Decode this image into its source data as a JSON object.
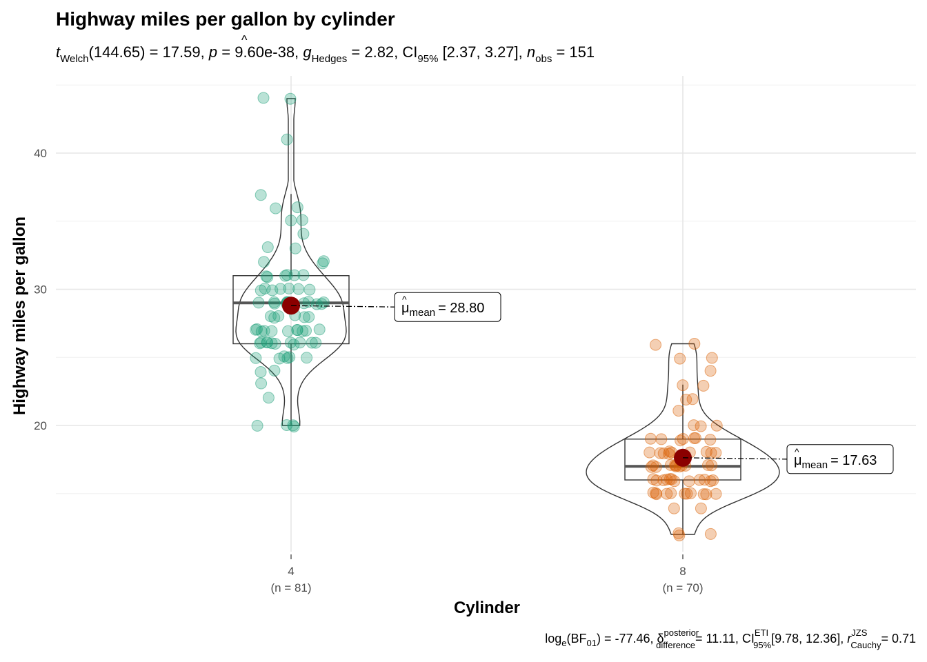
{
  "chart_data": {
    "type": "violin-box-scatter",
    "title": "Highway miles per gallon by cylinder",
    "subtitle": {
      "t_symbol": "t",
      "t_sub": "Welch",
      "df": "(144.65)",
      "t_value": "= 17.59,",
      "p_symbol": "p",
      "p_value": "= 9.60e-38,",
      "g_symbol": "g",
      "g_hat": "^",
      "g_sub": "Hedges",
      "g_value": "= 2.82, CI",
      "ci_sub": "95%",
      "ci_value": "[2.37, 3.27],",
      "n_symbol": "n",
      "n_sub": "obs",
      "n_value": "= 151"
    },
    "xlabel": "Cylinder",
    "ylabel": "Highway miles per gallon",
    "ylim": [
      10.5,
      45
    ],
    "yticks": [
      20,
      30,
      40
    ],
    "grid": true,
    "groups": [
      {
        "category": "4",
        "n_label": "(n = 81)",
        "color": "#1B9E77",
        "mean": 28.8,
        "mean_label": {
          "symbol": "μ",
          "sub": "mean",
          "value": "= 28.80"
        },
        "box": {
          "q1": 26,
          "median": 29,
          "q3": 31,
          "whisker_low": 20,
          "whisker_high": 37
        },
        "range": [
          20,
          44
        ],
        "points": [
          44,
          44,
          41,
          37,
          36,
          36,
          35,
          35,
          34,
          33,
          33,
          32,
          32,
          32,
          31,
          31,
          31,
          31,
          31,
          31,
          30,
          30,
          30,
          30,
          30,
          30,
          30,
          29,
          29,
          29,
          29,
          29,
          29,
          29,
          29,
          29,
          29,
          29,
          29,
          28,
          28,
          28,
          28,
          28,
          28,
          27,
          27,
          27,
          27,
          27,
          27,
          27,
          27,
          27,
          27,
          27,
          26,
          26,
          26,
          26,
          26,
          26,
          26,
          26,
          26,
          26,
          26,
          25,
          25,
          25,
          25,
          25,
          25,
          24,
          24,
          23,
          22,
          20,
          20,
          20,
          20
        ]
      },
      {
        "category": "8",
        "n_label": "(n = 70)",
        "color": "#D95F02",
        "mean": 17.63,
        "mean_label": {
          "symbol": "μ",
          "sub": "mean",
          "value": "= 17.63"
        },
        "box": {
          "q1": 16,
          "median": 17,
          "q3": 19,
          "whisker_low": 12,
          "whisker_high": 23
        },
        "range": [
          12,
          26
        ],
        "points": [
          26,
          26,
          25,
          25,
          24,
          23,
          23,
          22,
          22,
          21,
          20,
          20,
          20,
          19,
          19,
          19,
          19,
          19,
          19,
          19,
          18,
          18,
          18,
          18,
          18,
          18,
          18,
          18,
          18,
          18,
          17,
          17,
          17,
          17,
          17,
          17,
          17,
          17,
          17,
          17,
          17,
          17,
          16,
          16,
          16,
          16,
          16,
          16,
          16,
          16,
          16,
          16,
          16,
          16,
          15,
          15,
          15,
          15,
          15,
          15,
          15,
          15,
          15,
          15,
          15,
          14,
          14,
          12,
          12,
          12
        ]
      }
    ],
    "caption": {
      "bf_text": "log",
      "bf_sub_e": "e",
      "bf_text2": "(BF",
      "bf_sub": "01",
      "bf_value": ") = -77.46,",
      "delta_symbol": "δ",
      "delta_hat": "^",
      "delta_sup": "posterior",
      "delta_sub": "difference",
      "delta_value": "= 11.11, CI",
      "ci_sup": "ETI",
      "ci_sub": "95%",
      "ci_value": "[9.78, 12.36],",
      "r_symbol": "r",
      "r_sup": "JZS",
      "r_sub": "Cauchy",
      "r_value": "= 0.71"
    },
    "mean_color": "#8B0000"
  }
}
